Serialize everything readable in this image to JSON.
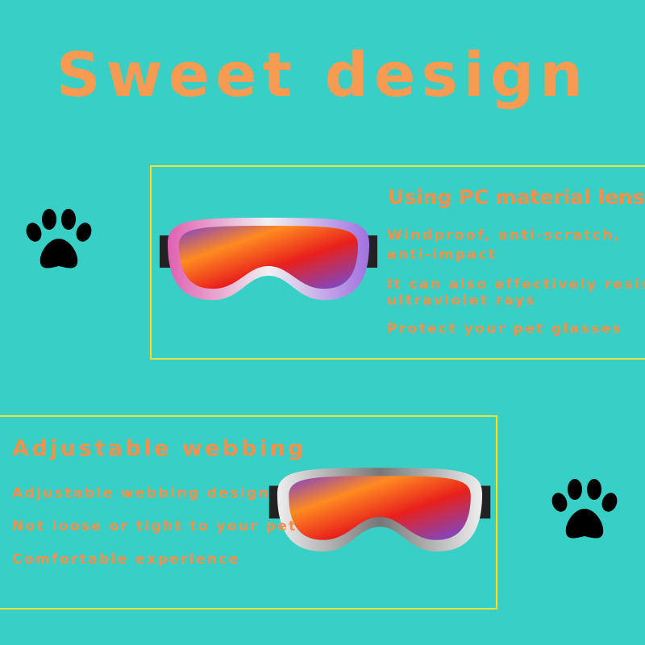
{
  "title": "Sweet design",
  "section1": {
    "heading": "Using PC material lens",
    "lines": [
      "Windproof, anti-scratch,",
      "anti-impact",
      "It can also effectively resist",
      "ultraviolet rays",
      "Protect your pet glasses"
    ]
  },
  "section2": {
    "heading": "Adjustable webbing",
    "lines": [
      "Adjustable webbing design",
      "Not loose or tight to your pet",
      "Comfortable experience"
    ]
  },
  "colors": {
    "background": "#38cfc6",
    "text": "#f5904a",
    "border": "#e9e33c"
  },
  "icons": [
    "paw-icon",
    "goggles-image"
  ]
}
